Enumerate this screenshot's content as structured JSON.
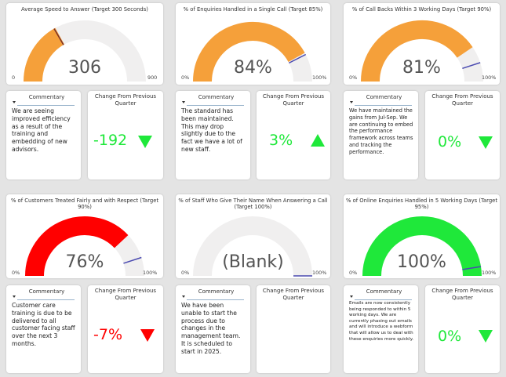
{
  "colors": {
    "orange": "#f5a03a",
    "gauge_bg": "#f0efef",
    "red": "#ff0000",
    "green": "#1fe83a",
    "target_line": "#4a4ab0",
    "needle": "#7a3028"
  },
  "gauges": [
    {
      "title": "Average Speed to Answer (Target 300 Seconds)",
      "value_label": "306",
      "min_label": "0",
      "max_label": "900",
      "fraction": 0.34,
      "target_fraction": 0.333,
      "fill_color": "orange"
    },
    {
      "title": "% of Enquiries Handled in a Single Call (Target 85%)",
      "value_label": "84%",
      "min_label": "0%",
      "max_label": "100%",
      "fraction": 0.84,
      "target_fraction": 0.85,
      "fill_color": "orange"
    },
    {
      "title": "% of Call Backs Within 3 Working Days (Target 90%)",
      "value_label": "81%",
      "min_label": "0%",
      "max_label": "100%",
      "fraction": 0.81,
      "target_fraction": 0.9,
      "fill_color": "orange"
    },
    {
      "title": "% of Customers Treated Fairly and with Respect (Target 90%)",
      "value_label": "76%",
      "min_label": "0%",
      "max_label": "100%",
      "fraction": 0.76,
      "target_fraction": 0.9,
      "fill_color": "red"
    },
    {
      "title": "% of Staff Who Give Their Name When Answering a Call (Target 100%)",
      "value_label": "(Blank)",
      "min_label": "0%",
      "max_label": "100%",
      "fraction": 0,
      "target_fraction": 1.0,
      "fill_color": "orange"
    },
    {
      "title": "% of Online Enquiries Handled in 5 Working Days (Target 95%)",
      "value_label": "100%",
      "min_label": "0%",
      "max_label": "100%",
      "fraction": 1.0,
      "target_fraction": 0.95,
      "fill_color": "green"
    }
  ],
  "commentary_header": "Commentary",
  "commentaries": [
    "We are seeing improved efficiency as a result of the training and embedding of new advisors.",
    "The standard has been maintained. This may drop slightly due to the fact we have a lot of new staff.",
    "We have maintained the gains from Jul-Sep. We are continuing to embed the performance framework across teams and tracking the performance.",
    "Customer care training is due to be delivered to all customer facing staff over the next 3 months.",
    "We have been unable to start the process due to changes in the management team. It is scheduled to start in 2025.",
    "Emails are now consistently being responded to within 5 working days. We are currently phasing out emails and will introduce a webform that will allow us to deal with these enquiries more quickly."
  ],
  "change_title": "Change From Previous Quarter",
  "changes": [
    {
      "value": "-192",
      "direction": "down",
      "color": "green"
    },
    {
      "value": "3%",
      "direction": "up",
      "color": "green"
    },
    {
      "value": "0%",
      "direction": "down",
      "color": "green"
    },
    {
      "value": "-7%",
      "direction": "down",
      "color": "red"
    },
    {
      "value": "",
      "direction": "none",
      "color": "green"
    },
    {
      "value": "0%",
      "direction": "down",
      "color": "green"
    }
  ]
}
